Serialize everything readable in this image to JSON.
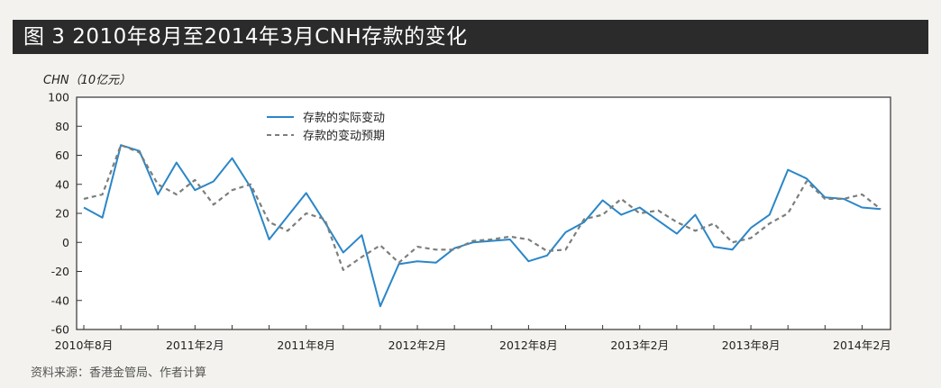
{
  "header": {
    "title": "图 3 2010年8月至2014年3月CNH存款的变化"
  },
  "unit_label": "CHN（10亿元）",
  "source_note": "资料来源：香港金管局、作者计算",
  "colors": {
    "actual": "#2a86c8",
    "expected": "#7a7f7c",
    "axis": "#333333",
    "header_bg": "#2b2b2b"
  },
  "chart_data": {
    "type": "line",
    "title": "图 3 2010年8月至2014年3月CNH存款的变化",
    "ylabel": "CHN（10亿元）",
    "xlabel": "",
    "ylim": [
      -60,
      100
    ],
    "yticks": [
      -60,
      -40,
      -20,
      0,
      20,
      40,
      60,
      80,
      100
    ],
    "grid": false,
    "legend_position": "top-left",
    "x_labels": [
      {
        "index": 0,
        "label": "2010年8月"
      },
      {
        "index": 6,
        "label": "2011年2月"
      },
      {
        "index": 12,
        "label": "2011年8月"
      },
      {
        "index": 18,
        "label": "2012年2月"
      },
      {
        "index": 24,
        "label": "2012年8月"
      },
      {
        "index": 30,
        "label": "2013年2月"
      },
      {
        "index": 36,
        "label": "2013年8月"
      },
      {
        "index": 42,
        "label": "2014年2月"
      }
    ],
    "series": [
      {
        "name": "存款的实际变动",
        "style": "solid",
        "values": [
          24,
          17,
          67,
          63,
          33,
          55,
          36,
          42,
          58,
          38,
          2,
          18,
          34,
          14,
          -7,
          5,
          -44,
          -15,
          -13,
          -14,
          -4,
          0,
          1,
          2,
          -13,
          -9,
          7,
          14,
          29,
          19,
          24,
          15,
          6,
          19,
          -3,
          -5,
          10,
          19,
          50,
          44,
          31,
          30,
          24,
          23
        ]
      },
      {
        "name": "存款的变动预期",
        "style": "dashed",
        "values": [
          30,
          33,
          67,
          62,
          40,
          33,
          43,
          26,
          36,
          40,
          14,
          8,
          20,
          16,
          -19,
          -10,
          -2,
          -14,
          -3,
          -5,
          -5,
          1,
          2,
          4,
          2,
          -6,
          -5,
          16,
          19,
          30,
          20,
          22,
          14,
          8,
          13,
          0,
          3,
          13,
          20,
          42,
          30,
          30,
          33,
          23
        ]
      }
    ]
  }
}
